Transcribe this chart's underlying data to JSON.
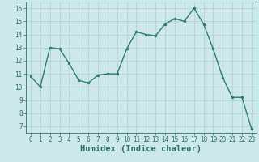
{
  "x": [
    0,
    1,
    2,
    3,
    4,
    5,
    6,
    7,
    8,
    9,
    10,
    11,
    12,
    13,
    14,
    15,
    16,
    17,
    18,
    19,
    20,
    21,
    22,
    23
  ],
  "y": [
    10.8,
    10.0,
    13.0,
    12.9,
    11.8,
    10.5,
    10.3,
    10.9,
    11.0,
    11.0,
    12.9,
    14.2,
    14.0,
    13.9,
    14.8,
    15.2,
    15.0,
    16.0,
    14.8,
    12.9,
    10.7,
    9.2,
    9.2,
    6.8
  ],
  "line_color": "#2d7d6e",
  "marker": ".",
  "markersize": 3,
  "linewidth": 1.0,
  "xlabel": "Humidex (Indice chaleur)",
  "bg_color": "#cde8e8",
  "grid_color": "#b0cccc",
  "xlim": [
    -0.5,
    23.5
  ],
  "ylim": [
    6.5,
    16.5
  ],
  "yticks": [
    7,
    8,
    9,
    10,
    11,
    12,
    13,
    14,
    15,
    16
  ],
  "xticks": [
    0,
    1,
    2,
    3,
    4,
    5,
    6,
    7,
    8,
    9,
    10,
    11,
    12,
    13,
    14,
    15,
    16,
    17,
    18,
    19,
    20,
    21,
    22,
    23
  ],
  "tick_fontsize": 5.5,
  "xlabel_fontsize": 7.5,
  "tick_color": "#2d6e6e",
  "axis_color": "#2d6e6e"
}
